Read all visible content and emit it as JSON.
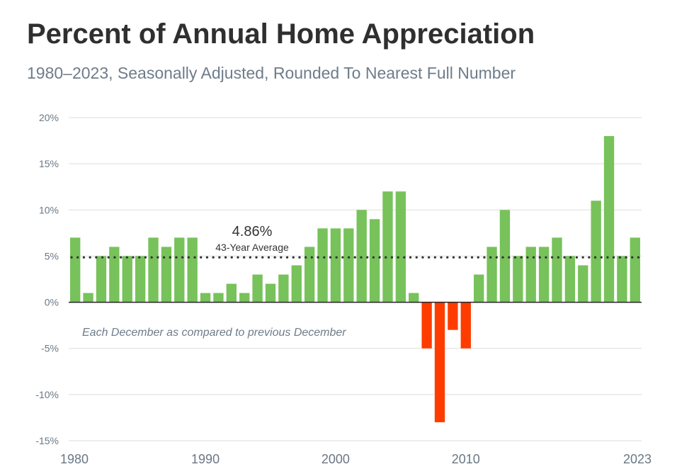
{
  "chart_data": {
    "type": "bar",
    "title": "Percent of Annual Home Appreciation",
    "subtitle": "1980–2023, Seasonally Adjusted, Rounded To Nearest Full Number",
    "x": [
      1980,
      1981,
      1982,
      1983,
      1984,
      1985,
      1986,
      1987,
      1988,
      1989,
      1990,
      1991,
      1992,
      1993,
      1994,
      1995,
      1996,
      1997,
      1998,
      1999,
      2000,
      2001,
      2002,
      2003,
      2004,
      2005,
      2006,
      2007,
      2008,
      2009,
      2010,
      2011,
      2012,
      2013,
      2014,
      2015,
      2016,
      2017,
      2018,
      2019,
      2020,
      2021,
      2022,
      2023
    ],
    "values": [
      7,
      1,
      5,
      6,
      5,
      5,
      7,
      6,
      7,
      7,
      1,
      1,
      2,
      1,
      3,
      2,
      3,
      4,
      6,
      8,
      8,
      8,
      10,
      9,
      12,
      12,
      1,
      -5,
      -13,
      -3,
      -5,
      3,
      6,
      10,
      5,
      6,
      6,
      7,
      5,
      4,
      11,
      18,
      5,
      7
    ],
    "ylim": [
      -15,
      20
    ],
    "y_ticks": [
      "-15%",
      "-10%",
      "-5%",
      "0%",
      "5%",
      "10%",
      "15%",
      "20%"
    ],
    "y_tick_values": [
      -15,
      -10,
      -5,
      0,
      5,
      10,
      15,
      20
    ],
    "x_tick_labels": [
      "1980",
      "1990",
      "2000",
      "2010",
      "2023"
    ],
    "x_tick_years": [
      1980,
      1990,
      2000,
      2010,
      2023
    ],
    "grid": true,
    "colors": {
      "positive": "#77c25a",
      "negative": "#ff3c00",
      "grid": "#dedede",
      "zero": "#222222",
      "average": "#333333"
    },
    "average": {
      "value": 4.86,
      "value_label": "4.86%",
      "label": "43-Year Average"
    },
    "annotation": "Each December as compared to previous December"
  }
}
